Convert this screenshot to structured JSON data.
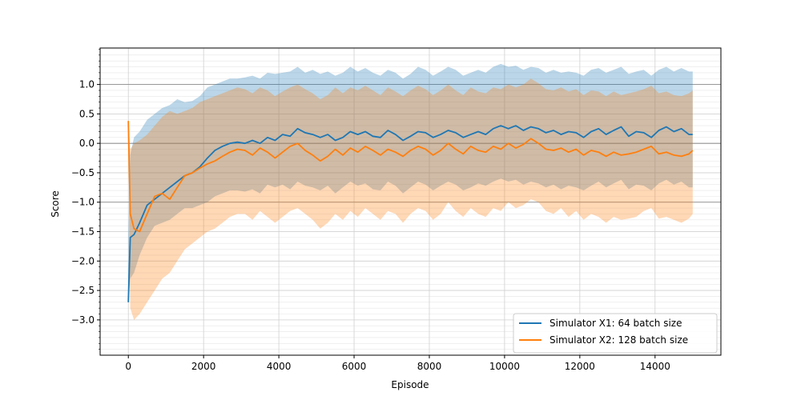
{
  "chart_data": {
    "type": "line",
    "title": "",
    "xlabel": "Episode",
    "ylabel": "Score",
    "xlim": [
      -750,
      15750
    ],
    "ylim": [
      -3.6,
      1.62
    ],
    "xticks": [
      0,
      2000,
      4000,
      6000,
      8000,
      10000,
      12000,
      14000
    ],
    "yticks": [
      -3.0,
      -2.5,
      -2.0,
      -1.5,
      -1.0,
      -0.5,
      0.0,
      0.5,
      1.0
    ],
    "reference_lines_y": [
      -1.0,
      0.0,
      1.0
    ],
    "grid": true,
    "legend_position": "lower-right",
    "series": [
      {
        "name": "Simulator X1: 64 batch size",
        "color": "#1f77b4",
        "x": [
          0,
          50,
          150,
          300,
          500,
          700,
          900,
          1100,
          1300,
          1500,
          1700,
          1900,
          2100,
          2300,
          2500,
          2700,
          2900,
          3100,
          3300,
          3500,
          3700,
          3900,
          4100,
          4300,
          4500,
          4700,
          4900,
          5100,
          5300,
          5500,
          5700,
          5900,
          6100,
          6300,
          6500,
          6700,
          6900,
          7100,
          7300,
          7500,
          7700,
          7900,
          8100,
          8300,
          8500,
          8700,
          8900,
          9100,
          9300,
          9500,
          9700,
          9900,
          10100,
          10300,
          10500,
          10700,
          10900,
          11100,
          11300,
          11500,
          11700,
          11900,
          12100,
          12300,
          12500,
          12700,
          12900,
          13100,
          13300,
          13500,
          13700,
          13900,
          14100,
          14300,
          14500,
          14700,
          14900,
          15000
        ],
        "y": [
          -2.7,
          -1.6,
          -1.55,
          -1.35,
          -1.05,
          -0.95,
          -0.85,
          -0.75,
          -0.65,
          -0.55,
          -0.5,
          -0.4,
          -0.25,
          -0.12,
          -0.05,
          0.0,
          0.02,
          0.0,
          0.05,
          0.0,
          0.1,
          0.05,
          0.15,
          0.12,
          0.25,
          0.18,
          0.15,
          0.1,
          0.15,
          0.05,
          0.1,
          0.2,
          0.15,
          0.2,
          0.12,
          0.1,
          0.22,
          0.15,
          0.05,
          0.12,
          0.2,
          0.18,
          0.1,
          0.15,
          0.22,
          0.18,
          0.1,
          0.15,
          0.2,
          0.15,
          0.25,
          0.3,
          0.25,
          0.3,
          0.22,
          0.28,
          0.25,
          0.18,
          0.22,
          0.15,
          0.2,
          0.18,
          0.1,
          0.2,
          0.25,
          0.15,
          0.22,
          0.28,
          0.12,
          0.2,
          0.18,
          0.1,
          0.22,
          0.28,
          0.2,
          0.25,
          0.15,
          0.15
        ],
        "band_upper": [
          -1.6,
          -0.2,
          0.1,
          0.2,
          0.4,
          0.5,
          0.6,
          0.65,
          0.75,
          0.7,
          0.72,
          0.8,
          0.95,
          1.0,
          1.05,
          1.1,
          1.1,
          1.12,
          1.15,
          1.1,
          1.2,
          1.18,
          1.2,
          1.22,
          1.3,
          1.2,
          1.25,
          1.18,
          1.22,
          1.15,
          1.2,
          1.3,
          1.22,
          1.28,
          1.2,
          1.15,
          1.25,
          1.2,
          1.1,
          1.18,
          1.3,
          1.25,
          1.15,
          1.22,
          1.3,
          1.25,
          1.15,
          1.2,
          1.25,
          1.2,
          1.3,
          1.35,
          1.3,
          1.32,
          1.25,
          1.3,
          1.28,
          1.2,
          1.25,
          1.2,
          1.22,
          1.2,
          1.15,
          1.25,
          1.28,
          1.2,
          1.25,
          1.3,
          1.18,
          1.22,
          1.25,
          1.15,
          1.25,
          1.3,
          1.22,
          1.28,
          1.22,
          1.22
        ],
        "band_lower": [
          -2.7,
          -2.3,
          -2.2,
          -1.9,
          -1.6,
          -1.4,
          -1.35,
          -1.3,
          -1.2,
          -1.1,
          -1.1,
          -1.05,
          -1.0,
          -0.9,
          -0.85,
          -0.8,
          -0.8,
          -0.82,
          -0.78,
          -0.85,
          -0.7,
          -0.75,
          -0.7,
          -0.78,
          -0.65,
          -0.72,
          -0.75,
          -0.8,
          -0.72,
          -0.85,
          -0.75,
          -0.65,
          -0.72,
          -0.68,
          -0.78,
          -0.8,
          -0.65,
          -0.72,
          -0.85,
          -0.75,
          -0.65,
          -0.7,
          -0.8,
          -0.72,
          -0.65,
          -0.7,
          -0.8,
          -0.75,
          -0.68,
          -0.72,
          -0.65,
          -0.6,
          -0.65,
          -0.62,
          -0.7,
          -0.65,
          -0.68,
          -0.75,
          -0.7,
          -0.78,
          -0.72,
          -0.75,
          -0.8,
          -0.72,
          -0.65,
          -0.75,
          -0.68,
          -0.62,
          -0.78,
          -0.7,
          -0.72,
          -0.8,
          -0.68,
          -0.62,
          -0.7,
          -0.65,
          -0.75,
          -0.75
        ]
      },
      {
        "name": "Simulator X2: 128 batch size",
        "color": "#ff7f0e",
        "x": [
          0,
          50,
          150,
          300,
          500,
          700,
          900,
          1100,
          1300,
          1500,
          1700,
          1900,
          2100,
          2300,
          2500,
          2700,
          2900,
          3100,
          3300,
          3500,
          3700,
          3900,
          4100,
          4300,
          4500,
          4700,
          4900,
          5100,
          5300,
          5500,
          5700,
          5900,
          6100,
          6300,
          6500,
          6700,
          6900,
          7100,
          7300,
          7500,
          7700,
          7900,
          8100,
          8300,
          8500,
          8700,
          8900,
          9100,
          9300,
          9500,
          9700,
          9900,
          10100,
          10300,
          10500,
          10700,
          10900,
          11100,
          11300,
          11500,
          11700,
          11900,
          12100,
          12300,
          12500,
          12700,
          12900,
          13100,
          13300,
          13500,
          13700,
          13900,
          14100,
          14300,
          14500,
          14700,
          14900,
          15000
        ],
        "y": [
          0.38,
          -1.2,
          -1.45,
          -1.5,
          -1.2,
          -0.9,
          -0.85,
          -0.95,
          -0.75,
          -0.55,
          -0.5,
          -0.42,
          -0.35,
          -0.3,
          -0.22,
          -0.15,
          -0.1,
          -0.12,
          -0.2,
          -0.08,
          -0.15,
          -0.25,
          -0.15,
          -0.05,
          0.0,
          -0.12,
          -0.2,
          -0.3,
          -0.22,
          -0.1,
          -0.2,
          -0.08,
          -0.15,
          -0.05,
          -0.12,
          -0.2,
          -0.1,
          -0.15,
          -0.22,
          -0.12,
          -0.05,
          -0.1,
          -0.2,
          -0.12,
          0.0,
          -0.1,
          -0.18,
          -0.05,
          -0.12,
          -0.15,
          -0.05,
          -0.1,
          0.0,
          -0.08,
          -0.02,
          0.08,
          0.0,
          -0.1,
          -0.12,
          -0.08,
          -0.15,
          -0.1,
          -0.2,
          -0.12,
          -0.15,
          -0.22,
          -0.15,
          -0.2,
          -0.18,
          -0.15,
          -0.1,
          -0.05,
          -0.18,
          -0.15,
          -0.2,
          -0.22,
          -0.18,
          -0.12
        ],
        "band_upper": [
          0.38,
          -0.1,
          0.0,
          0.05,
          0.15,
          0.3,
          0.45,
          0.55,
          0.5,
          0.55,
          0.6,
          0.7,
          0.75,
          0.8,
          0.85,
          0.9,
          0.95,
          0.92,
          0.85,
          0.95,
          0.9,
          0.8,
          0.88,
          0.95,
          1.0,
          0.92,
          0.85,
          0.75,
          0.82,
          0.95,
          0.85,
          0.95,
          0.9,
          0.98,
          0.9,
          0.82,
          0.95,
          0.88,
          0.8,
          0.9,
          0.98,
          0.92,
          0.82,
          0.9,
          1.0,
          0.9,
          0.82,
          0.95,
          0.88,
          0.85,
          0.95,
          0.92,
          1.0,
          0.95,
          1.0,
          1.1,
          1.02,
          0.92,
          0.9,
          0.95,
          0.88,
          0.92,
          0.82,
          0.9,
          0.88,
          0.8,
          0.88,
          0.82,
          0.85,
          0.88,
          0.92,
          0.98,
          0.85,
          0.88,
          0.82,
          0.8,
          0.85,
          0.9
        ],
        "band_lower": [
          0.38,
          -2.8,
          -3.0,
          -2.9,
          -2.7,
          -2.5,
          -2.3,
          -2.2,
          -2.0,
          -1.8,
          -1.7,
          -1.6,
          -1.5,
          -1.45,
          -1.35,
          -1.25,
          -1.2,
          -1.2,
          -1.3,
          -1.15,
          -1.25,
          -1.35,
          -1.25,
          -1.15,
          -1.1,
          -1.2,
          -1.3,
          -1.45,
          -1.35,
          -1.2,
          -1.3,
          -1.15,
          -1.25,
          -1.1,
          -1.2,
          -1.3,
          -1.15,
          -1.2,
          -1.35,
          -1.2,
          -1.1,
          -1.15,
          -1.3,
          -1.2,
          -1.0,
          -1.15,
          -1.25,
          -1.1,
          -1.2,
          -1.25,
          -1.1,
          -1.15,
          -1.0,
          -1.1,
          -1.05,
          -0.95,
          -1.0,
          -1.15,
          -1.2,
          -1.1,
          -1.25,
          -1.15,
          -1.3,
          -1.2,
          -1.25,
          -1.35,
          -1.25,
          -1.3,
          -1.28,
          -1.25,
          -1.15,
          -1.1,
          -1.28,
          -1.25,
          -1.3,
          -1.35,
          -1.28,
          -1.2
        ]
      }
    ]
  }
}
